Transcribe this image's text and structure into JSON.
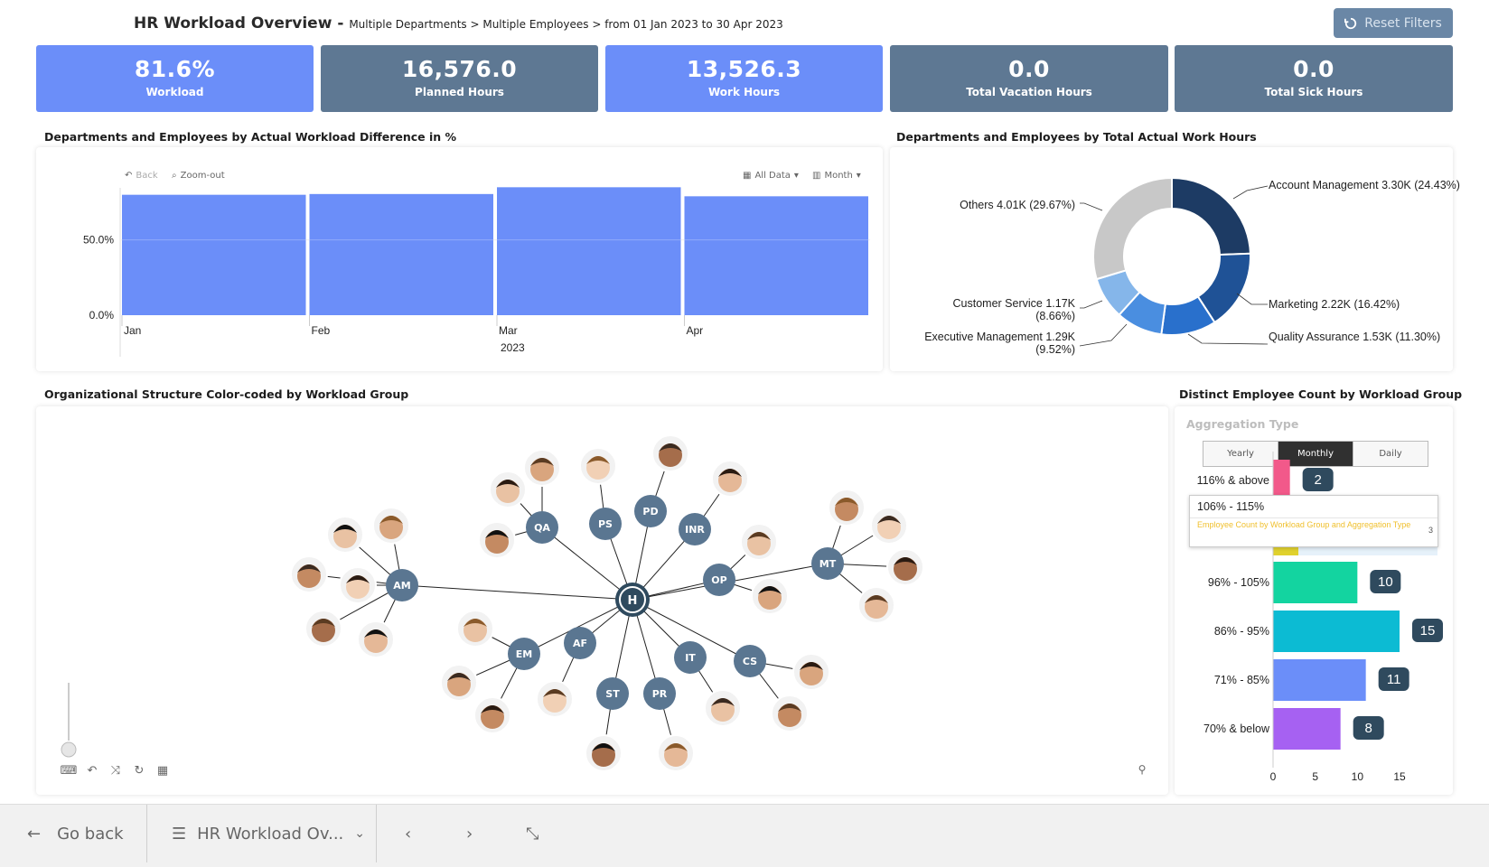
{
  "header": {
    "title": "HR Workload Overview -",
    "crumb": "Multiple Departments > Multiple Employees > from 01 Jan 2023 to 30 Apr 2023",
    "reset_label": "Reset Filters"
  },
  "kpis": [
    {
      "value": "81.6%",
      "label": "Workload"
    },
    {
      "value": "16,576.0",
      "label": "Planned Hours"
    },
    {
      "value": "13,526.3",
      "label": "Work Hours"
    },
    {
      "value": "0.0",
      "label": "Total Vacation Hours"
    },
    {
      "value": "0.0",
      "label": "Total Sick Hours"
    }
  ],
  "sections": {
    "bar_title": "Departments and Employees by Actual Workload Difference in %",
    "donut_title": "Departments and Employees by Total Actual Work Hours",
    "org_title": "Organizational Structure Color-coded by Workload Group",
    "hbar_title": "Distinct Employee Count by Workload Group"
  },
  "bar_tools": {
    "back": "Back",
    "zoom": "Zoom-out",
    "all_data": "All Data",
    "month": "Month"
  },
  "hbar_ui": {
    "agg_title": "Aggregation Type",
    "tabs": [
      "Yearly",
      "Monthly",
      "Daily"
    ],
    "tooltip_head": "106% - 115%",
    "tooltip_body": "Employee Count by Workload Group and Aggregation Type",
    "tooltip_value": "3"
  },
  "chart_data": [
    {
      "type": "bar",
      "title": "Departments and Employees by Actual Workload Difference in %",
      "categories": [
        "Jan",
        "Feb",
        "Mar",
        "Apr"
      ],
      "values": [
        80,
        80.5,
        85,
        79
      ],
      "x_group_label": "2023",
      "y_ticks": [
        "0.0%",
        "50.0%"
      ],
      "ylim": [
        0,
        90
      ],
      "color": "#6b8ef9"
    },
    {
      "type": "pie",
      "title": "Departments and Employees by Total Actual Work Hours",
      "slices": [
        {
          "name": "Account Management",
          "value": 3.3,
          "pct": 24.43,
          "label": "Account Management 3.30K\n(24.43%)",
          "color": "#1d3b64"
        },
        {
          "name": "Marketing",
          "value": 2.22,
          "pct": 16.42,
          "label": "Marketing 2.22K (16.42%)",
          "color": "#1f5296"
        },
        {
          "name": "Quality Assurance",
          "value": 1.53,
          "pct": 11.3,
          "label": "Quality Assurance 1.53K\n(11.30%)",
          "color": "#2970cc"
        },
        {
          "name": "Executive Management",
          "value": 1.29,
          "pct": 9.52,
          "label": "Executive Management 1.29K\n(9.52%)",
          "color": "#4a8ee0"
        },
        {
          "name": "Customer Service",
          "value": 1.17,
          "pct": 8.66,
          "label": "Customer Service 1.17K\n(8.66%)",
          "color": "#85b6ea"
        },
        {
          "name": "Others",
          "value": 4.01,
          "pct": 29.67,
          "label": "Others 4.01K (29.67%)",
          "color": "#c8c8c8"
        }
      ]
    },
    {
      "type": "bar",
      "title": "Distinct Employee Count by Workload Group",
      "categories": [
        "116% & above",
        "106% - 115%",
        "96% - 105%",
        "86% - 95%",
        "71% - 85%",
        "70% & below"
      ],
      "values": [
        2,
        3,
        10,
        15,
        11,
        8
      ],
      "colors": [
        "#f2598a",
        "#e0d12e",
        "#13d4a0",
        "#0cbbd3",
        "#6b8ef9",
        "#a661f2"
      ],
      "x_ticks": [
        0,
        5,
        10,
        15
      ],
      "xlim": [
        0,
        17
      ]
    }
  ],
  "org": {
    "hub": "H",
    "departments": [
      "QA",
      "PS",
      "PD",
      "INR",
      "OP",
      "MT",
      "AM",
      "EM",
      "AF",
      "ST",
      "PR",
      "IT",
      "CS"
    ]
  },
  "bottom": {
    "go_back": "Go back",
    "dashboard": "HR Workload Ov..."
  }
}
